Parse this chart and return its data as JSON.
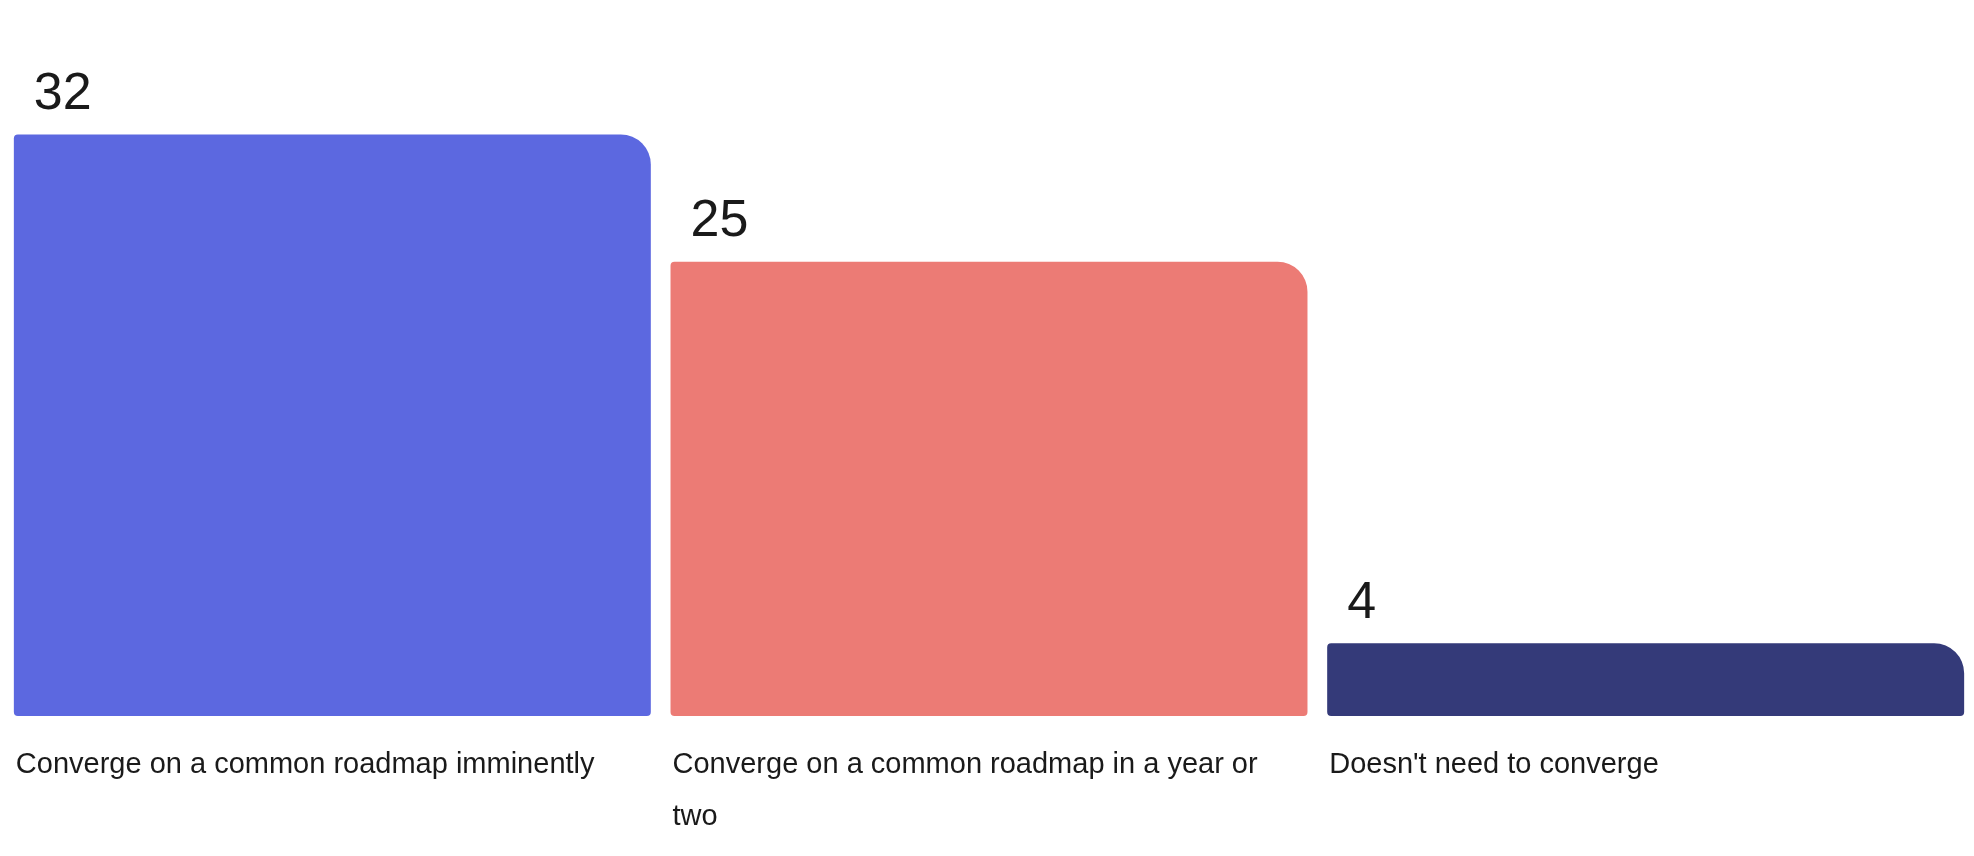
{
  "chart_data": {
    "type": "bar",
    "categories": [
      "Converge on a common roadmap imminently",
      "Converge on a common roadmap in a year or two",
      "Doesn't need to converge"
    ],
    "values": [
      32,
      25,
      4
    ],
    "colors": [
      "#5c68e0",
      "#ec7b75",
      "#343a79"
    ],
    "data_labels": true
  }
}
